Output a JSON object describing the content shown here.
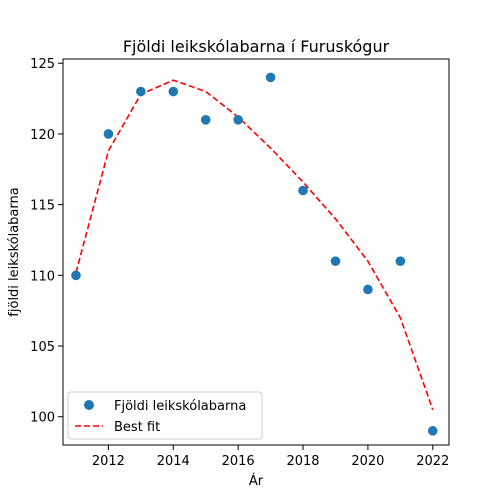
{
  "chart_data": {
    "type": "scatter",
    "title": "Fjöldi leikskólabarna í Furuskógur",
    "xlabel": "Ár",
    "ylabel": "fjöldi leikskólabarna",
    "xlim": [
      2010.6,
      2022.5
    ],
    "ylim": [
      98,
      125.3
    ],
    "xticks": [
      2012,
      2014,
      2016,
      2018,
      2020,
      2022
    ],
    "yticks": [
      100,
      105,
      110,
      115,
      120,
      125
    ],
    "grid": false,
    "legend_position": "lower-left",
    "series": [
      {
        "name": "Fjöldi leikskólabarna",
        "kind": "scatter",
        "color": "#1f77b4",
        "x": [
          2011,
          2012,
          2013,
          2014,
          2015,
          2016,
          2017,
          2018,
          2019,
          2020,
          2021,
          2022
        ],
        "y": [
          110,
          120,
          123,
          123,
          121,
          121,
          124,
          116,
          111,
          109,
          111,
          99
        ]
      },
      {
        "name": "Best fit",
        "kind": "line",
        "style": "dashed",
        "color": "#ff0000",
        "x": [
          2011,
          2012,
          2013,
          2014,
          2015,
          2016,
          2017,
          2018,
          2019,
          2020,
          2021,
          2022
        ],
        "y": [
          110.2,
          118.8,
          122.8,
          123.8,
          123.0,
          121.2,
          119.0,
          116.6,
          114.0,
          111.0,
          107.0,
          100.5
        ]
      }
    ]
  }
}
